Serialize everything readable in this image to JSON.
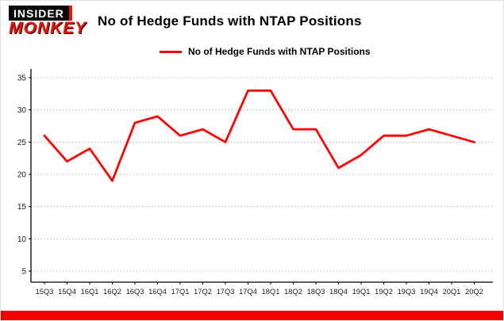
{
  "logo": {
    "line1": "INSIDER",
    "line2": "MONKEY"
  },
  "header": {
    "title": "No of Hedge Funds with NTAP Positions"
  },
  "legend": {
    "label": "No of Hedge Funds with NTAP Positions"
  },
  "colors": {
    "series_red": "#fb0505",
    "logo_red": "#e8150d",
    "logo_black": "#0a0a0a",
    "grid_gray": "#b8b8b8",
    "axis_black": "#000000",
    "footer_red": "#f20000"
  },
  "chart_data": {
    "type": "line",
    "title": "No of Hedge Funds with NTAP Positions",
    "categories": [
      "15Q3",
      "15Q4",
      "16Q1",
      "16Q2",
      "16Q3",
      "16Q4",
      "17Q1",
      "17Q2",
      "17Q3",
      "17Q4",
      "18Q1",
      "18Q2",
      "18Q3",
      "18Q4",
      "19Q1",
      "19Q2",
      "19Q3",
      "19Q4",
      "20Q1",
      "20Q2"
    ],
    "values": [
      26,
      22,
      24,
      19,
      28,
      29,
      26,
      27,
      25,
      33,
      33,
      27,
      27,
      21,
      23,
      26,
      26,
      27,
      26,
      25
    ],
    "xlabel": "",
    "ylabel": "",
    "ylim": [
      5,
      35
    ],
    "yticks": [
      5,
      10,
      15,
      20,
      25,
      30,
      35
    ],
    "grid": true,
    "legend_position": "top-left",
    "series": [
      {
        "name": "No of Hedge Funds with NTAP Positions",
        "color": "#fb0505"
      }
    ]
  }
}
